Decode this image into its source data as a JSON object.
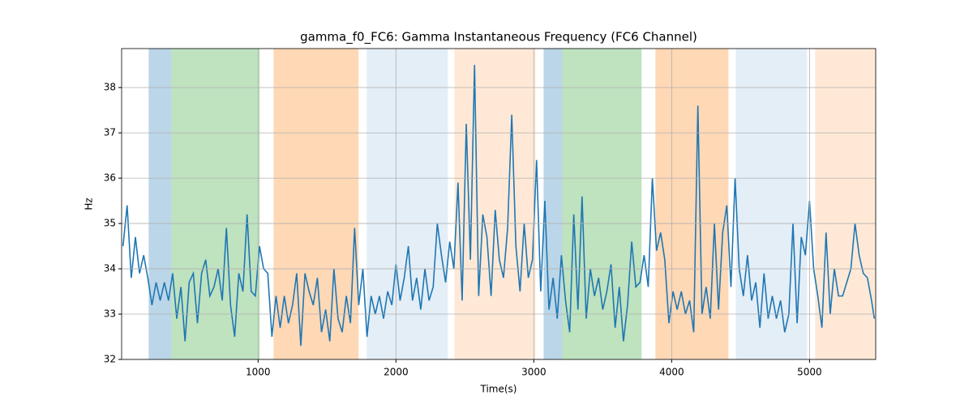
{
  "chart_data": {
    "type": "line",
    "title": "gamma_f0_FC6: Gamma Instantaneous Frequency (FC6 Channel)",
    "x_label": "Time(s)",
    "y_label": "Hz",
    "xlim": [
      10,
      5480
    ],
    "ylim": [
      32,
      38.86
    ],
    "xticks": [
      1000,
      2000,
      3000,
      4000,
      5000
    ],
    "yticks": [
      32,
      33,
      34,
      35,
      36,
      37,
      38
    ],
    "grid": true,
    "spans": [
      {
        "start": 206,
        "end": 371,
        "color": "#1f77b4",
        "alpha": 0.3
      },
      {
        "start": 371,
        "end": 1012,
        "color": "#2ca02c",
        "alpha": 0.3
      },
      {
        "start": 1112,
        "end": 1729,
        "color": "#ff7f0e",
        "alpha": 0.3
      },
      {
        "start": 1788,
        "end": 2376,
        "color": "#1f77b4",
        "alpha": 0.12
      },
      {
        "start": 2424,
        "end": 3012,
        "color": "#ff7f0e",
        "alpha": 0.17
      },
      {
        "start": 3071,
        "end": 3206,
        "color": "#1f77b4",
        "alpha": 0.3
      },
      {
        "start": 3206,
        "end": 3782,
        "color": "#2ca02c",
        "alpha": 0.3
      },
      {
        "start": 3882,
        "end": 4412,
        "color": "#ff7f0e",
        "alpha": 0.3
      },
      {
        "start": 4465,
        "end": 4982,
        "color": "#1f77b4",
        "alpha": 0.12
      },
      {
        "start": 5041,
        "end": 5482,
        "color": "#ff7f0e",
        "alpha": 0.17
      }
    ],
    "series": [
      {
        "color": "#1f77b4",
        "x": [
          20,
          50,
          80,
          110,
          140,
          170,
          200,
          230,
          260,
          290,
          320,
          350,
          380,
          410,
          440,
          470,
          500,
          530,
          560,
          590,
          620,
          650,
          680,
          710,
          740,
          770,
          800,
          830,
          860,
          890,
          920,
          950,
          980,
          1010,
          1040,
          1070,
          1100,
          1130,
          1160,
          1190,
          1220,
          1250,
          1280,
          1310,
          1340,
          1370,
          1400,
          1430,
          1460,
          1490,
          1520,
          1550,
          1580,
          1610,
          1640,
          1670,
          1700,
          1730,
          1760,
          1790,
          1820,
          1850,
          1880,
          1910,
          1940,
          1970,
          2000,
          2030,
          2060,
          2090,
          2120,
          2150,
          2180,
          2210,
          2240,
          2270,
          2300,
          2330,
          2360,
          2390,
          2420,
          2450,
          2480,
          2510,
          2540,
          2570,
          2600,
          2630,
          2660,
          2690,
          2720,
          2750,
          2780,
          2810,
          2840,
          2870,
          2900,
          2930,
          2960,
          2990,
          3020,
          3050,
          3080,
          3110,
          3140,
          3170,
          3200,
          3230,
          3260,
          3290,
          3320,
          3350,
          3380,
          3410,
          3440,
          3470,
          3500,
          3530,
          3560,
          3590,
          3620,
          3650,
          3680,
          3710,
          3740,
          3770,
          3800,
          3830,
          3860,
          3890,
          3920,
          3950,
          3980,
          4010,
          4040,
          4070,
          4100,
          4130,
          4160,
          4190,
          4220,
          4250,
          4280,
          4310,
          4340,
          4370,
          4400,
          4430,
          4460,
          4490,
          4520,
          4550,
          4580,
          4610,
          4640,
          4670,
          4700,
          4730,
          4760,
          4790,
          4820,
          4850,
          4880,
          4910,
          4940,
          4970,
          5000,
          5030,
          5060,
          5090,
          5120,
          5150,
          5180,
          5210,
          5240,
          5270,
          5300,
          5330,
          5360,
          5390,
          5420,
          5450,
          5470
        ],
        "values": [
          34.5,
          35.4,
          33.8,
          34.7,
          33.9,
          34.3,
          33.8,
          33.2,
          33.7,
          33.3,
          33.7,
          33.3,
          33.9,
          32.9,
          33.6,
          32.4,
          33.7,
          33.9,
          32.8,
          33.9,
          34.2,
          33.4,
          33.6,
          34.0,
          33.3,
          34.9,
          33.2,
          32.5,
          33.9,
          33.5,
          35.2,
          33.5,
          33.4,
          34.5,
          34.0,
          33.9,
          32.5,
          33.4,
          32.7,
          33.4,
          32.8,
          33.2,
          33.9,
          32.3,
          33.9,
          33.5,
          33.2,
          33.8,
          32.6,
          33.1,
          32.4,
          34.0,
          32.9,
          32.6,
          33.4,
          32.8,
          34.9,
          33.2,
          34.0,
          32.5,
          33.4,
          33.0,
          33.4,
          32.9,
          33.5,
          33.2,
          34.1,
          33.3,
          33.8,
          34.5,
          33.3,
          33.8,
          33.1,
          34.0,
          33.3,
          33.6,
          35.0,
          34.3,
          33.7,
          34.6,
          34.0,
          35.9,
          33.3,
          37.2,
          34.2,
          38.5,
          33.4,
          35.2,
          34.7,
          33.4,
          35.3,
          34.2,
          33.8,
          34.9,
          37.4,
          34.5,
          33.5,
          35.0,
          33.8,
          34.2,
          36.4,
          33.5,
          35.5,
          33.1,
          33.8,
          32.9,
          34.3,
          33.3,
          32.6,
          35.2,
          33.1,
          35.6,
          32.9,
          34.0,
          33.4,
          33.8,
          33.1,
          33.5,
          34.1,
          32.7,
          33.6,
          32.4,
          33.2,
          34.6,
          33.6,
          33.7,
          34.3,
          33.6,
          36.0,
          34.4,
          34.8,
          34.2,
          32.8,
          33.5,
          33.1,
          33.5,
          33.0,
          33.3,
          32.6,
          37.6,
          33.0,
          33.6,
          32.9,
          35.0,
          33.1,
          34.8,
          35.4,
          33.6,
          36.0,
          34.0,
          33.4,
          34.3,
          33.3,
          33.7,
          32.7,
          33.9,
          32.9,
          33.4,
          32.9,
          33.3,
          32.6,
          33.0,
          35.0,
          32.8,
          34.7,
          34.3,
          35.5,
          34.0,
          33.4,
          32.7,
          34.8,
          33.0,
          34.0,
          33.4,
          33.4,
          33.7,
          34.0,
          35.0,
          34.3,
          33.9,
          33.8,
          33.3,
          32.9
        ]
      }
    ]
  }
}
